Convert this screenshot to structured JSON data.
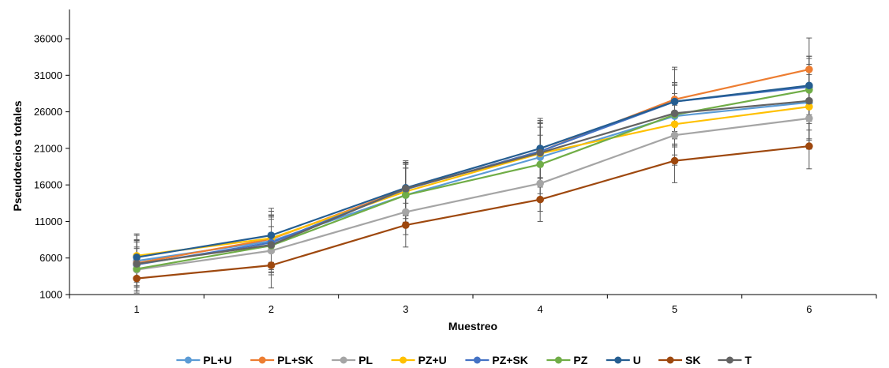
{
  "chart_data": {
    "type": "line",
    "title": "",
    "xlabel": "Muestreo",
    "ylabel": "Pseudotecios totales",
    "categories": [
      "1",
      "2",
      "3",
      "4",
      "5",
      "6"
    ],
    "ylim": [
      1000,
      40000
    ],
    "yticks": [
      "1000",
      "6000",
      "11000",
      "16000",
      "21000",
      "26000",
      "31000",
      "36000"
    ],
    "grid": false,
    "legend_position": "bottom",
    "error_bars": true,
    "series": [
      {
        "name": "PL+U",
        "color": "#5B9BD5",
        "values": [
          5600,
          8300,
          14600,
          19800,
          25400,
          27300
        ],
        "errors": [
          2900,
          3600,
          3700,
          4100,
          4200,
          5200
        ]
      },
      {
        "name": "PL+SK",
        "color": "#ED7D31",
        "values": [
          5300,
          8600,
          15400,
          20600,
          27700,
          31800
        ],
        "errors": [
          3100,
          3800,
          3600,
          4200,
          4400,
          4300
        ]
      },
      {
        "name": "PL",
        "color": "#A5A5A5",
        "values": [
          4400,
          7000,
          12300,
          16200,
          22800,
          25100
        ],
        "errors": [
          2900,
          3300,
          3100,
          3800,
          4100,
          4200
        ]
      },
      {
        "name": "PZ+U",
        "color": "#FFC000",
        "values": [
          6300,
          8700,
          15100,
          20300,
          24300,
          26700
        ],
        "errors": [
          3000,
          3700,
          3700,
          4100,
          4200,
          4400
        ]
      },
      {
        "name": "PZ+SK",
        "color": "#4472C4",
        "values": [
          5100,
          8100,
          15400,
          20600,
          27400,
          29400
        ],
        "errors": [
          3100,
          3700,
          3600,
          4200,
          4400,
          4200
        ]
      },
      {
        "name": "PZ",
        "color": "#70AD47",
        "values": [
          4500,
          7700,
          14600,
          18800,
          25600,
          29000
        ],
        "errors": [
          3000,
          3600,
          3700,
          4000,
          4200,
          4300
        ]
      },
      {
        "name": "U",
        "color": "#255E91",
        "values": [
          6100,
          9100,
          15600,
          21000,
          27400,
          29600
        ],
        "errors": [
          3000,
          3700,
          3700,
          4100,
          4400,
          4000
        ]
      },
      {
        "name": "SK",
        "color": "#9E480E",
        "values": [
          3200,
          5000,
          10500,
          14000,
          19300,
          21300
        ],
        "errors": [
          2000,
          3100,
          3000,
          3000,
          3000,
          3100
        ]
      },
      {
        "name": "T",
        "color": "#636363",
        "values": [
          5200,
          7800,
          15500,
          20400,
          25800,
          27500
        ],
        "errors": [
          3000,
          3800,
          3600,
          4100,
          4200,
          4000
        ]
      }
    ]
  }
}
